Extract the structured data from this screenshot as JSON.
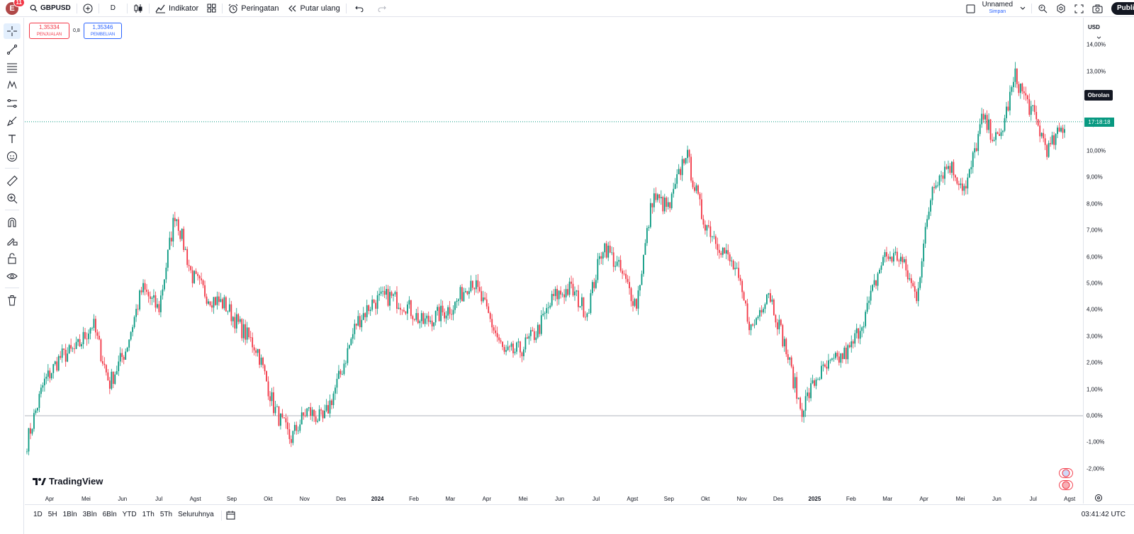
{
  "topbar": {
    "avatar_letter": "E",
    "notification_count": "11",
    "symbol": "GBPUSD",
    "interval": "D",
    "indicators_label": "Indikator",
    "alert_label": "Peringatan",
    "replay_label": "Putar ulang",
    "layout_name": "Unnamed",
    "layout_status": "Simpan",
    "publish_label": "Publikasikan"
  },
  "trade": {
    "sell_price": "1,35334",
    "sell_label": "PENJUALAN",
    "spread": "0,8",
    "buy_price": "1,35346",
    "buy_label": "PEMBELIAN"
  },
  "price_axis": {
    "currency": "USD",
    "labels": [
      "14,00%",
      "13,00%",
      "12,00%",
      "11,00%",
      "10,00%",
      "9,00%",
      "8,00%",
      "7,00%",
      "6,00%",
      "5,00%",
      "4,00%",
      "3,00%",
      "2,00%",
      "1,00%",
      "0,00%",
      "-1,00%",
      "-2,00%"
    ],
    "countdown": "17:18:18",
    "chat_label": "Obrolan"
  },
  "time_axis": {
    "labels": [
      "Apr",
      "Mei",
      "Jun",
      "Jul",
      "Agst",
      "Sep",
      "Okt",
      "Nov",
      "Des",
      "2024",
      "Feb",
      "Mar",
      "Apr",
      "Mei",
      "Jun",
      "Jul",
      "Agst",
      "Sep",
      "Okt",
      "Nov",
      "Des",
      "2025",
      "Feb",
      "Mar",
      "Apr",
      "Mei",
      "Jun",
      "Jul",
      "Agst"
    ]
  },
  "bottombar": {
    "ranges": [
      "1D",
      "5H",
      "1Bln",
      "3Bln",
      "6Bln",
      "YTD",
      "1Th",
      "5Th",
      "Seluruhnya"
    ],
    "clock": "03:41:42 UTC"
  },
  "brand": "TradingView",
  "colors": {
    "up": "#089981",
    "down": "#f23645",
    "accent": "#2962ff"
  },
  "chart_data": {
    "type": "candlestick",
    "symbol": "GBPUSD",
    "interval": "1D",
    "scale": "percent",
    "ylim": [
      -2.5,
      14.5
    ],
    "x_labels": [
      "Apr",
      "Mei",
      "Jun",
      "Jul",
      "Agst",
      "Sep",
      "Okt",
      "Nov",
      "Des",
      "2024",
      "Feb",
      "Mar",
      "Apr",
      "Mei",
      "Jun",
      "Jul",
      "Agst",
      "Sep",
      "Okt",
      "Nov",
      "Des",
      "2025",
      "Feb",
      "Mar",
      "Apr",
      "Mei",
      "Jun",
      "Jul",
      "Agst"
    ],
    "close_path": [
      [
        "Mar",
        -1.0
      ],
      [
        "Apr",
        1.2
      ],
      [
        "Apr",
        2.2
      ],
      [
        "Mei",
        2.5
      ],
      [
        "Mei",
        3.5
      ],
      [
        "Jun",
        1.2
      ],
      [
        "Jun",
        2.5
      ],
      [
        "Jun",
        4.8
      ],
      [
        "Jul",
        4.0
      ],
      [
        "Jul",
        7.7
      ],
      [
        "Jul",
        5.3
      ],
      [
        "Agst",
        4.5
      ],
      [
        "Agst",
        4.2
      ],
      [
        "Sep",
        3.3
      ],
      [
        "Sep",
        2.5
      ],
      [
        "Okt",
        0.3
      ],
      [
        "Okt",
        -0.9
      ],
      [
        "Okt",
        0.2
      ],
      [
        "Nov",
        -0.2
      ],
      [
        "Nov",
        1.5
      ],
      [
        "Des",
        3.5
      ],
      [
        "Des",
        4.3
      ],
      [
        "2024",
        4.5
      ],
      [
        "2024",
        4.2
      ],
      [
        "Feb",
        3.5
      ],
      [
        "Feb",
        3.8
      ],
      [
        "Mar",
        4.2
      ],
      [
        "Mar",
        5.2
      ],
      [
        "Apr",
        3.8
      ],
      [
        "Apr",
        2.3
      ],
      [
        "Mei",
        2.5
      ],
      [
        "Mei",
        3.2
      ],
      [
        "Jun",
        4.5
      ],
      [
        "Jun",
        4.8
      ],
      [
        "Jul",
        3.9
      ],
      [
        "Jul",
        6.5
      ],
      [
        "Agst",
        5.5
      ],
      [
        "Agst",
        4.2
      ],
      [
        "Sep",
        8.3
      ],
      [
        "Sep",
        7.8
      ],
      [
        "Okt",
        10.0
      ],
      [
        "Okt",
        7.5
      ],
      [
        "Nov",
        6.5
      ],
      [
        "Nov",
        5.5
      ],
      [
        "Des",
        3.2
      ],
      [
        "Des",
        4.8
      ],
      [
        "2025",
        2.7
      ],
      [
        "2025",
        0.2
      ],
      [
        "2025",
        1.5
      ],
      [
        "Feb",
        2.0
      ],
      [
        "Feb",
        2.5
      ],
      [
        "Mar",
        4.0
      ],
      [
        "Mar",
        6.0
      ],
      [
        "Apr",
        6.0
      ],
      [
        "Apr",
        4.5
      ],
      [
        "Mei",
        8.8
      ],
      [
        "Mei",
        9.5
      ],
      [
        "Mei",
        8.5
      ],
      [
        "Jun",
        11.2
      ],
      [
        "Jun",
        10.3
      ],
      [
        "Jul",
        12.8
      ],
      [
        "Jul",
        11.5
      ],
      [
        "Jul",
        10.0
      ],
      [
        "Agst",
        11.0
      ]
    ],
    "current_price_line_pct": 11.1,
    "zero_line_pct": 0.0
  }
}
